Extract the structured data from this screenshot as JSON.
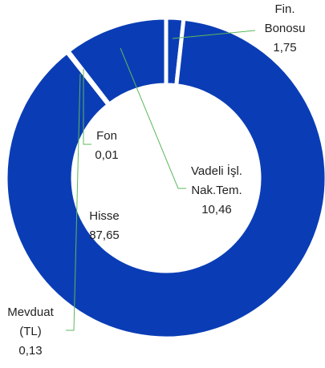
{
  "chart_data": {
    "type": "donut",
    "categories": [
      "Fin. Bonosu",
      "Hisse",
      "Mevduat (TL)",
      "Fon",
      "Vadeli İşl. Nak.Tem."
    ],
    "values": [
      1.75,
      87.65,
      0.13,
      0.01,
      10.46
    ],
    "value_labels": [
      "1,75",
      "87,65",
      "0,13",
      "0,01",
      "10,46"
    ],
    "color": "#0a3db5"
  }
}
